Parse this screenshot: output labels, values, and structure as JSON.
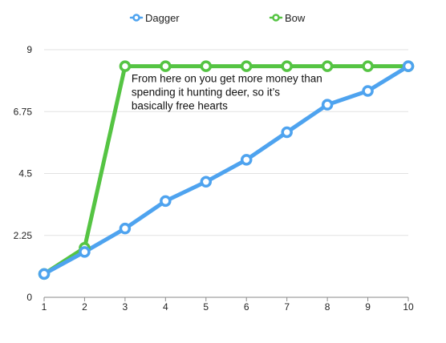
{
  "chart_data": {
    "type": "line",
    "title": "",
    "xlabel": "",
    "ylabel": "",
    "x": [
      1,
      2,
      3,
      4,
      5,
      6,
      7,
      8,
      9,
      10
    ],
    "x_tick_labels": [
      "1",
      "2",
      "3",
      "4",
      "5",
      "6",
      "7",
      "8",
      "9",
      "10"
    ],
    "ylim": [
      0,
      9
    ],
    "y_ticks": [
      0,
      2.25,
      4.5,
      6.75,
      9
    ],
    "y_tick_labels": [
      "0",
      "2.25",
      "4.5",
      "6.75",
      "9"
    ],
    "grid": "horizontal",
    "legend_position": "top",
    "series": [
      {
        "name": "Dagger",
        "color": "#4ea3ef",
        "values": [
          0.85,
          1.65,
          2.5,
          3.5,
          4.2,
          5.0,
          6.0,
          7.0,
          7.5,
          8.4
        ]
      },
      {
        "name": "Bow",
        "color": "#55c443",
        "values": [
          0.85,
          1.8,
          8.4,
          8.4,
          8.4,
          8.4,
          8.4,
          8.4,
          8.4,
          8.4
        ]
      }
    ],
    "annotations": [
      {
        "anchor_x": 3,
        "anchor_y": 8.4,
        "lines": [
          "From here on you get more money than",
          "spending it hunting deer, so it’s",
          "basically free hearts"
        ]
      }
    ]
  }
}
